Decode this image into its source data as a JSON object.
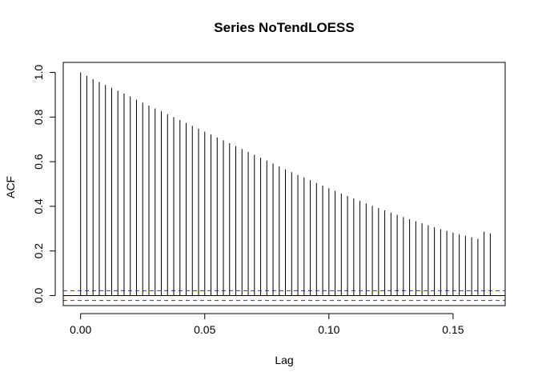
{
  "chart_data": {
    "type": "bar",
    "title": "Series  NoTendLOESS",
    "xlabel": "Lag",
    "ylabel": "ACF",
    "xlim": [
      -0.007,
      0.171
    ],
    "ylim": [
      -0.045,
      1.045
    ],
    "xticks": [
      0.0,
      0.05,
      0.1,
      0.15
    ],
    "xtick_labels": [
      "0.00",
      "0.05",
      "0.10",
      "0.15"
    ],
    "yticks": [
      0.0,
      0.2,
      0.4,
      0.6,
      0.8,
      1.0
    ],
    "ytick_labels": [
      "0.0",
      "0.2",
      "0.4",
      "0.6",
      "0.8",
      "1.0"
    ],
    "confidence_band": [
      0.022,
      -0.022
    ],
    "lag_step": 0.0025,
    "x": [
      0.0,
      0.0025,
      0.005,
      0.0075,
      0.01,
      0.0125,
      0.015,
      0.0175,
      0.02,
      0.0225,
      0.025,
      0.0275,
      0.03,
      0.0325,
      0.035,
      0.0375,
      0.04,
      0.0425,
      0.045,
      0.0475,
      0.05,
      0.0525,
      0.055,
      0.0575,
      0.06,
      0.0625,
      0.065,
      0.0675,
      0.07,
      0.0725,
      0.075,
      0.0775,
      0.08,
      0.0825,
      0.085,
      0.0875,
      0.09,
      0.0925,
      0.095,
      0.0975,
      0.1,
      0.1025,
      0.105,
      0.1075,
      0.11,
      0.1125,
      0.115,
      0.1175,
      0.12,
      0.1225,
      0.125,
      0.1275,
      0.13,
      0.1325,
      0.135,
      0.1375,
      0.14,
      0.1425,
      0.145,
      0.1475,
      0.15,
      0.1525,
      0.155,
      0.1575,
      0.16,
      0.1625,
      0.165
    ],
    "values": [
      1.0,
      0.985,
      0.97,
      0.957,
      0.944,
      0.931,
      0.918,
      0.905,
      0.892,
      0.878,
      0.865,
      0.852,
      0.839,
      0.826,
      0.813,
      0.8,
      0.787,
      0.774,
      0.761,
      0.748,
      0.735,
      0.722,
      0.709,
      0.696,
      0.683,
      0.67,
      0.657,
      0.644,
      0.631,
      0.618,
      0.605,
      0.592,
      0.579,
      0.566,
      0.553,
      0.541,
      0.529,
      0.517,
      0.505,
      0.493,
      0.481,
      0.469,
      0.457,
      0.446,
      0.435,
      0.424,
      0.413,
      0.402,
      0.392,
      0.382,
      0.372,
      0.362,
      0.352,
      0.342,
      0.333,
      0.324,
      0.315,
      0.306,
      0.298,
      0.29,
      0.282,
      0.275,
      0.268,
      0.261,
      0.254,
      0.286,
      0.279
    ]
  },
  "colors": {
    "bars": "#000000",
    "confidence": "#2f2fe0",
    "frame": "#000000"
  }
}
